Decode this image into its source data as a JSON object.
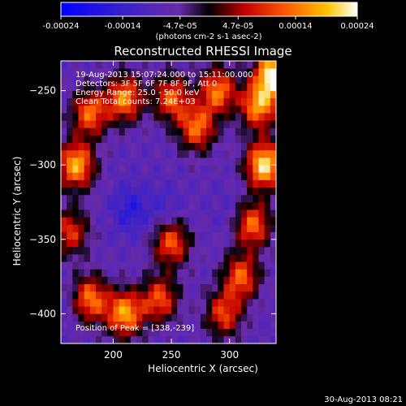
{
  "chart_data": {
    "type": "heatmap",
    "title": "Reconstructed RHESSI Image",
    "xlabel": "Heliocentric X (arcsec)",
    "ylabel": "Heliocentric Y (arcsec)",
    "xlim": [
      155,
      340
    ],
    "ylim": [
      -420,
      -230
    ],
    "x_ticks": [
      200,
      250,
      300
    ],
    "y_ticks": [
      -250,
      -300,
      -350,
      -400
    ],
    "colorbar": {
      "ticks": [
        {
          "value": -0.00024,
          "label": "-0.00024"
        },
        {
          "value": -0.00014,
          "label": "-0.00014"
        },
        {
          "value": -4.7e-05,
          "label": "-4.7e-05"
        },
        {
          "value": 4.7e-05,
          "label": "4.7e-05"
        },
        {
          "value": 0.00014,
          "label": "0.00014"
        },
        {
          "value": 0.00024,
          "label": "0.00024"
        }
      ],
      "range": [
        -0.00024,
        0.00024
      ],
      "unit": "(photons cm-2 s-1 asec-2)"
    },
    "annotations": [
      "19-Aug-2013 15:07:24.000 to 15:11:00.000",
      "Detectors: 3F 5F 6F 7F 8F 9F, Att 0",
      "Energy Range: 25.0 - 50.0 keV",
      "Clean    Total counts: 7.24E+03"
    ],
    "peak_label": "Position of Peak = [338,-239]",
    "hotspots": [
      {
        "x": 168,
        "y": -300,
        "value": 0.00018
      },
      {
        "x": 180,
        "y": -265,
        "value": 0.00013
      },
      {
        "x": 210,
        "y": -255,
        "value": 0.00015
      },
      {
        "x": 250,
        "y": -255,
        "value": 0.00012
      },
      {
        "x": 272,
        "y": -275,
        "value": 0.00013
      },
      {
        "x": 290,
        "y": -250,
        "value": 0.00014
      },
      {
        "x": 325,
        "y": -260,
        "value": 0.00016
      },
      {
        "x": 330,
        "y": -300,
        "value": 0.00022
      },
      {
        "x": 338,
        "y": -239,
        "value": 0.00024
      },
      {
        "x": 320,
        "y": -340,
        "value": 0.00013
      },
      {
        "x": 310,
        "y": -375,
        "value": 0.00012
      },
      {
        "x": 250,
        "y": -352,
        "value": 0.00012
      },
      {
        "x": 210,
        "y": -400,
        "value": 0.00017
      },
      {
        "x": 180,
        "y": -390,
        "value": 0.00014
      },
      {
        "x": 240,
        "y": -390,
        "value": 0.00011
      },
      {
        "x": 295,
        "y": -400,
        "value": 0.0001
      },
      {
        "x": 163,
        "y": -345,
        "value": 9e-05
      }
    ],
    "coldspots": [
      {
        "x": 215,
        "y": -330,
        "value": -0.00016
      },
      {
        "x": 245,
        "y": -330,
        "value": -0.00012
      },
      {
        "x": 300,
        "y": -330,
        "value": -0.0001
      },
      {
        "x": 160,
        "y": -395,
        "value": -0.0001
      },
      {
        "x": 240,
        "y": -270,
        "value": -8e-05
      }
    ]
  },
  "date_stamp": "30-Aug-2013 08:21"
}
